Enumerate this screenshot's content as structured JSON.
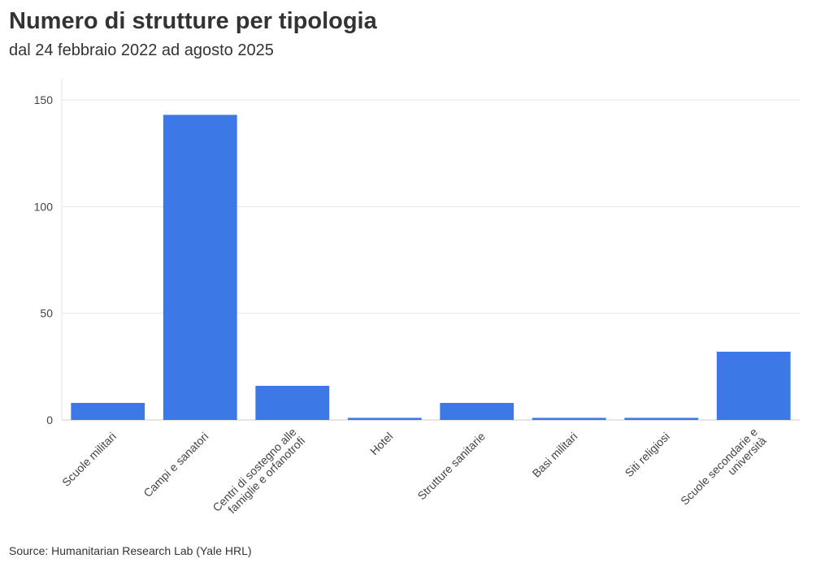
{
  "header": {
    "title": "Numero di strutture per tipologia",
    "subtitle": "dal 24 febbraio 2022 ad agosto 2025"
  },
  "footer": {
    "source": "Source: Humanitarian Research Lab (Yale HRL)"
  },
  "colors": {
    "bar": "#3d79e6",
    "grid": "#e6e6e6",
    "axis": "#cccccc"
  },
  "chart_data": {
    "type": "bar",
    "title": "Numero di strutture per tipologia",
    "subtitle": "dal 24 febbraio 2022 ad agosto 2025",
    "xlabel": "",
    "ylabel": "",
    "categories": [
      [
        "Scuole militari"
      ],
      [
        "Campi e sanatori"
      ],
      [
        "Centri di sostegno alle",
        "famiglie e orfanotrofi"
      ],
      [
        "Hotel"
      ],
      [
        "Strutture sanitarie"
      ],
      [
        "Basi militari"
      ],
      [
        "Siti religiosi"
      ],
      [
        "Scuole secondarie e",
        "università"
      ]
    ],
    "values": [
      8,
      143,
      16,
      1,
      8,
      1,
      1,
      32
    ],
    "ylim": [
      0,
      160
    ],
    "yticks": [
      0,
      50,
      100,
      150
    ],
    "grid": true,
    "legend": "none"
  }
}
